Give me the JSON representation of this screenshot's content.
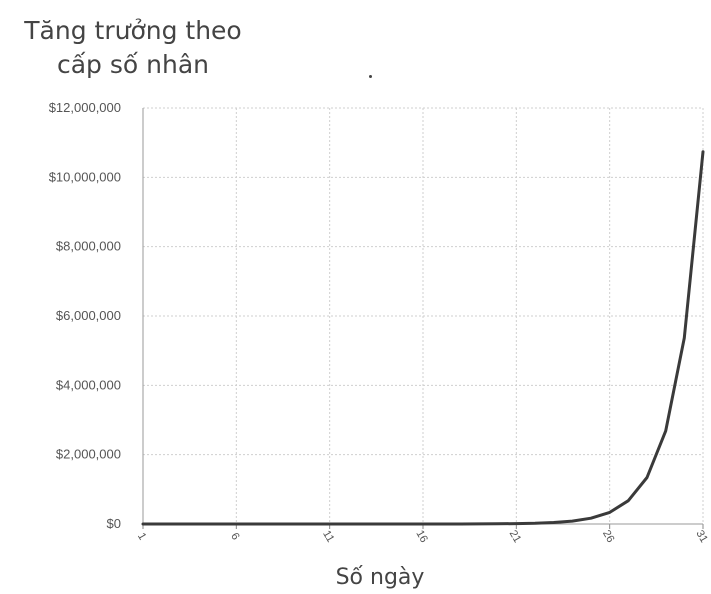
{
  "chart_data": {
    "type": "line",
    "title_line1": "Tăng trưởng theo",
    "title_line2": "cấp số nhân",
    "xlabel": "Số ngày",
    "ylabel": "",
    "ylim": [
      0,
      12000000
    ],
    "yticks": [
      "$0",
      "$2,000,000",
      "$4,000,000",
      "$6,000,000",
      "$8,000,000",
      "$10,000,000",
      "$12,000,000"
    ],
    "xticks": [
      "1",
      "6",
      "11",
      "16",
      "21",
      "26",
      "31"
    ],
    "xlim": [
      1,
      31
    ],
    "grid": true,
    "line_color": "#3a3a3a",
    "series": [
      {
        "x": [
          1,
          2,
          3,
          4,
          5,
          6,
          7,
          8,
          9,
          10,
          11,
          12,
          13,
          14,
          15,
          16,
          17,
          18,
          19,
          20,
          21,
          22,
          23,
          24,
          25,
          26,
          27,
          28,
          29,
          30,
          31
        ],
        "values": [
          0.01,
          0.02,
          0.04,
          0.08,
          0.16,
          0.32,
          0.64,
          1.28,
          2.56,
          5.12,
          10.24,
          20.48,
          40.96,
          81.92,
          163.84,
          327.68,
          655.36,
          1310.72,
          2621.44,
          5242.88,
          10485.76,
          20971.52,
          41943.04,
          83886.08,
          167772.16,
          335544.32,
          671088.64,
          1342177.28,
          2684354.56,
          5368709.12,
          10737418.24
        ]
      }
    ]
  }
}
